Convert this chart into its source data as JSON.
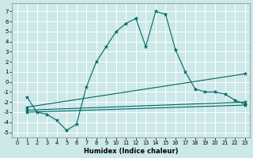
{
  "title": "",
  "xlabel": "Humidex (Indice chaleur)",
  "bg_color": "#cce8e8",
  "grid_color": "#ffffff",
  "line_color": "#006666",
  "xlim": [
    -0.5,
    23.5
  ],
  "ylim": [
    -5.5,
    7.8
  ],
  "yticks": [
    -5,
    -4,
    -3,
    -2,
    -1,
    0,
    1,
    2,
    3,
    4,
    5,
    6,
    7
  ],
  "xticks": [
    0,
    1,
    2,
    3,
    4,
    5,
    6,
    7,
    8,
    9,
    10,
    11,
    12,
    13,
    14,
    15,
    16,
    17,
    18,
    19,
    20,
    21,
    22,
    23
  ],
  "main_curve": {
    "x": [
      1,
      2,
      3,
      4,
      5,
      6,
      7,
      8,
      9,
      10,
      11,
      12,
      13,
      14,
      15,
      16,
      17,
      18,
      19,
      20,
      21,
      22,
      23
    ],
    "y": [
      -1.5,
      -3.0,
      -3.2,
      -3.8,
      -4.8,
      -4.2,
      -0.5,
      2.0,
      3.5,
      5.0,
      5.8,
      6.3,
      3.5,
      7.0,
      6.7,
      3.2,
      1.0,
      -0.7,
      -1.0,
      -1.0,
      -1.2,
      -1.8,
      -2.2
    ]
  },
  "ref_lines": [
    {
      "x": [
        1,
        23
      ],
      "y": [
        -3.0,
        -2.3
      ]
    },
    {
      "x": [
        1,
        23
      ],
      "y": [
        -2.8,
        -2.0
      ]
    },
    {
      "x": [
        1,
        23
      ],
      "y": [
        -2.5,
        0.8
      ]
    }
  ]
}
